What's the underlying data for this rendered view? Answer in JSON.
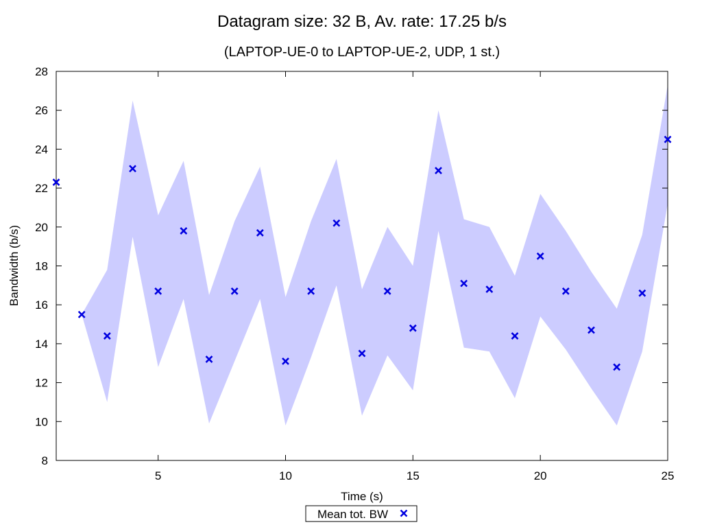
{
  "chart_data": {
    "type": "scatter",
    "title": "Datagram size: 32 B, Av. rate: 17.25 b/s",
    "subtitle": "(LAPTOP-UE-0 to LAPTOP-UE-2, UDP, 1 st.)",
    "xlabel": "Time (s)",
    "ylabel": "Bandwidth (b/s)",
    "xlim": [
      1,
      25
    ],
    "ylim": [
      8,
      28
    ],
    "xticks": [
      5,
      10,
      15,
      20,
      25
    ],
    "yticks": [
      8,
      10,
      12,
      14,
      16,
      18,
      20,
      22,
      24,
      26,
      28
    ],
    "grid": false,
    "legend_position": "bottom-center",
    "series": [
      {
        "name": "Mean tot. BW",
        "marker": "x",
        "color": "#0000e0",
        "band_color": "#ccccff",
        "x": [
          1,
          2,
          3,
          4,
          5,
          6,
          7,
          8,
          9,
          10,
          11,
          12,
          13,
          14,
          15,
          16,
          17,
          18,
          19,
          20,
          21,
          22,
          23,
          24,
          25
        ],
        "y": [
          22.3,
          15.5,
          14.4,
          23.0,
          16.7,
          19.8,
          13.2,
          16.7,
          19.7,
          13.1,
          16.7,
          20.2,
          13.5,
          16.7,
          14.8,
          22.9,
          17.1,
          16.8,
          14.4,
          18.5,
          16.7,
          14.7,
          12.8,
          16.6,
          24.5
        ],
        "upper": [
          22.3,
          15.5,
          17.8,
          26.5,
          20.6,
          23.4,
          16.5,
          20.3,
          23.1,
          16.4,
          20.3,
          23.5,
          16.8,
          20.0,
          18.0,
          26.0,
          20.4,
          20.0,
          17.5,
          21.7,
          19.8,
          17.7,
          15.8,
          19.6,
          27.3
        ],
        "lower": [
          22.3,
          15.5,
          11.0,
          19.5,
          12.8,
          16.3,
          9.9,
          13.1,
          16.3,
          9.8,
          13.3,
          17.0,
          10.3,
          13.4,
          11.6,
          19.8,
          13.8,
          13.6,
          11.2,
          15.4,
          13.7,
          11.7,
          9.8,
          13.6,
          21.2
        ]
      }
    ]
  }
}
